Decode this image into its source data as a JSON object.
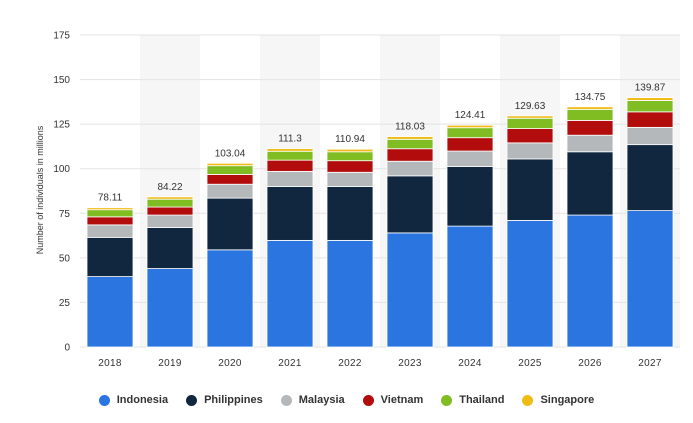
{
  "chart_data": {
    "type": "bar",
    "stacked": true,
    "categories": [
      "2018",
      "2019",
      "2020",
      "2021",
      "2022",
      "2023",
      "2024",
      "2025",
      "2026",
      "2027"
    ],
    "series": [
      {
        "name": "Indonesia",
        "color": "#2a75df",
        "values": [
          39.5,
          44.0,
          54.5,
          59.8,
          59.8,
          64.0,
          67.8,
          71.0,
          74.0,
          76.5
        ]
      },
      {
        "name": "Philippines",
        "color": "#10273f",
        "values": [
          22.0,
          23.0,
          29.0,
          30.2,
          30.2,
          32.0,
          33.4,
          34.5,
          35.5,
          37.0
        ]
      },
      {
        "name": "Malaysia",
        "color": "#b5b8bb",
        "values": [
          7.0,
          7.0,
          7.8,
          8.5,
          8.0,
          8.2,
          8.7,
          9.0,
          9.3,
          9.7
        ]
      },
      {
        "name": "Vietnam",
        "color": "#b30c0c",
        "values": [
          4.5,
          4.5,
          5.5,
          6.3,
          6.5,
          7.0,
          7.5,
          8.0,
          8.3,
          8.7
        ]
      },
      {
        "name": "Thailand",
        "color": "#7fbd23",
        "values": [
          4.0,
          4.4,
          4.9,
          5.0,
          5.0,
          5.3,
          5.6,
          5.8,
          6.2,
          6.4
        ]
      },
      {
        "name": "Singapore",
        "color": "#f1bb16",
        "values": [
          1.11,
          1.32,
          1.34,
          1.5,
          1.44,
          1.53,
          1.41,
          1.33,
          1.45,
          1.57
        ]
      }
    ],
    "totals": [
      "78.11",
      "84.22",
      "103.04",
      "111.3",
      "110.94",
      "118.03",
      "124.41",
      "129.63",
      "134.75",
      "139.87"
    ],
    "ylabel": "Number of individuals in millions",
    "xlabel": "",
    "ylim": [
      0,
      175
    ],
    "yticks": [
      0,
      25,
      50,
      75,
      100,
      125,
      150,
      175
    ],
    "grid": true,
    "legend_position": "bottom"
  }
}
